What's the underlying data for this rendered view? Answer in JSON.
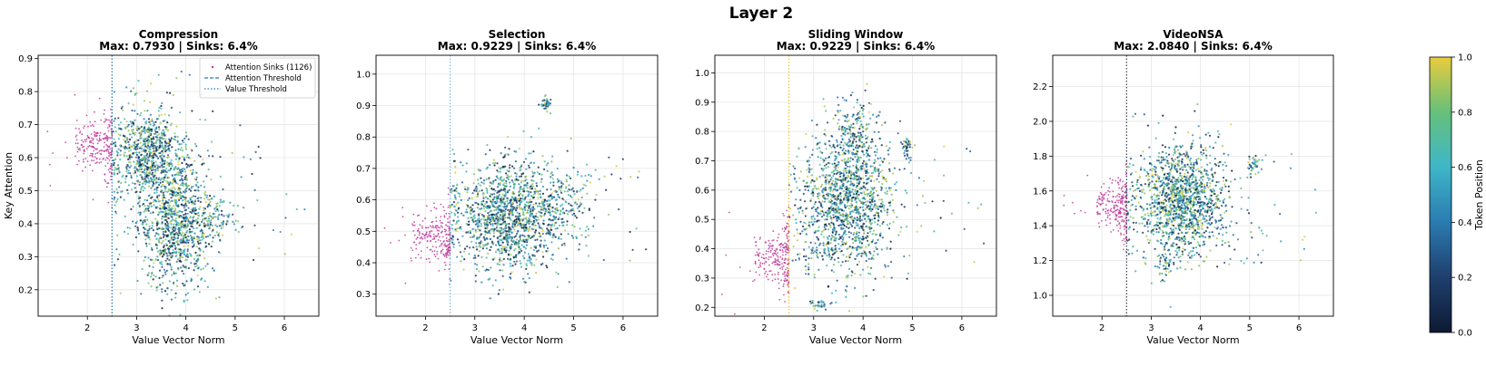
{
  "figure": {
    "suptitle": "Layer 2",
    "colorbar": {
      "label": "Token Position",
      "ticks": [
        "0.0",
        "0.2",
        "0.4",
        "0.6",
        "0.8",
        "1.0"
      ],
      "colormap": "viridis-like",
      "range": [
        0,
        1
      ]
    },
    "colors": {
      "sink_marker": "#c0399a",
      "grid": "#e6e6e6"
    }
  },
  "chart_data": [
    {
      "type": "scatter",
      "title": "Compression",
      "subtitle": "Max: 0.7930 | Sinks: 6.4%",
      "xlabel": "Value Vector Norm",
      "ylabel": "Key Attention",
      "xlim": [
        1.0,
        6.7
      ],
      "ylim": [
        0.12,
        0.91
      ],
      "xticks": [
        2,
        3,
        4,
        5,
        6
      ],
      "yticks": [
        0.2,
        0.3,
        0.4,
        0.5,
        0.6,
        0.7,
        0.8,
        0.9
      ],
      "grid": true,
      "value_threshold": 2.5,
      "threshold_color": "#1f77b4",
      "legend": {
        "placement": "top-right",
        "entries": [
          "Attention Sinks (1126)",
          "Attention Threshold",
          "Value Threshold"
        ]
      },
      "clusters": [
        {
          "kind": "sinks",
          "x_range": [
            1.75,
            2.5
          ],
          "y_center": 0.64,
          "y_spread": 0.05,
          "count": 230
        },
        {
          "kind": "tokens",
          "x_center": 3.2,
          "y_center": 0.62,
          "sx": 0.35,
          "sy": 0.06,
          "count": 600
        },
        {
          "kind": "tokens",
          "x_center": 3.8,
          "y_center": 0.4,
          "sx": 0.35,
          "sy": 0.1,
          "count": 900
        },
        {
          "kind": "tokens",
          "x_center": 4.6,
          "y_center": 0.42,
          "sx": 0.25,
          "sy": 0.04,
          "count": 120
        },
        {
          "kind": "tokens",
          "x_center": 3.5,
          "y_center": 0.52,
          "sx": 0.55,
          "sy": 0.14,
          "count": 300
        }
      ]
    },
    {
      "type": "scatter",
      "title": "Selection",
      "subtitle": "Max: 0.9229 | Sinks: 6.4%",
      "xlabel": "Value Vector Norm",
      "ylabel": "",
      "xlim": [
        1.0,
        6.7
      ],
      "ylim": [
        0.23,
        1.06
      ],
      "xticks": [
        2,
        3,
        4,
        5,
        6
      ],
      "yticks": [
        0.3,
        0.4,
        0.5,
        0.6,
        0.7,
        0.8,
        0.9,
        1.0
      ],
      "grid": true,
      "value_threshold": 2.5,
      "threshold_color": "#7ab8e0",
      "clusters": [
        {
          "kind": "sinks",
          "x_range": [
            1.7,
            2.5
          ],
          "y_center": 0.48,
          "y_spread": 0.05,
          "count": 230
        },
        {
          "kind": "tokens",
          "x_center": 3.7,
          "y_center": 0.55,
          "sx": 0.55,
          "sy": 0.08,
          "count": 1200
        },
        {
          "kind": "tokens",
          "x_center": 4.45,
          "y_center": 0.905,
          "sx": 0.05,
          "sy": 0.01,
          "count": 40
        },
        {
          "kind": "tokens",
          "x_center": 4.8,
          "y_center": 0.62,
          "sx": 0.3,
          "sy": 0.05,
          "count": 120
        },
        {
          "kind": "tokens",
          "x_center": 3.6,
          "y_center": 0.55,
          "sx": 0.7,
          "sy": 0.12,
          "count": 200
        }
      ]
    },
    {
      "type": "scatter",
      "title": "Sliding Window",
      "subtitle": "Max: 0.9229 | Sinks: 6.4%",
      "xlabel": "Value Vector Norm",
      "ylabel": "",
      "xlim": [
        1.0,
        6.7
      ],
      "ylim": [
        0.17,
        1.06
      ],
      "xticks": [
        2,
        3,
        4,
        5,
        6
      ],
      "yticks": [
        0.2,
        0.3,
        0.4,
        0.5,
        0.6,
        0.7,
        0.8,
        0.9,
        1.0
      ],
      "grid": true,
      "value_threshold": 2.5,
      "threshold_color": "#e8c630",
      "clusters": [
        {
          "kind": "sinks",
          "x_range": [
            1.8,
            2.5
          ],
          "y_center": 0.37,
          "y_spread": 0.06,
          "count": 230
        },
        {
          "kind": "tokens",
          "x_center": 3.7,
          "y_center": 0.58,
          "sx": 0.45,
          "sy": 0.12,
          "count": 1200
        },
        {
          "kind": "tokens",
          "x_center": 3.8,
          "y_center": 0.8,
          "sx": 0.2,
          "sy": 0.05,
          "count": 150
        },
        {
          "kind": "tokens",
          "x_center": 4.9,
          "y_center": 0.74,
          "sx": 0.05,
          "sy": 0.02,
          "count": 40
        },
        {
          "kind": "tokens",
          "x_center": 3.1,
          "y_center": 0.21,
          "sx": 0.1,
          "sy": 0.01,
          "count": 30
        },
        {
          "kind": "tokens",
          "x_center": 3.5,
          "y_center": 0.45,
          "sx": 0.6,
          "sy": 0.08,
          "count": 200
        }
      ]
    },
    {
      "type": "scatter",
      "title": "VideoNSA",
      "subtitle": "Max: 2.0840 | Sinks: 6.4%",
      "xlabel": "Value Vector Norm",
      "ylabel": "",
      "xlim": [
        1.0,
        6.7
      ],
      "ylim": [
        0.88,
        2.38
      ],
      "xticks": [
        2,
        3,
        4,
        5,
        6
      ],
      "yticks": [
        1.0,
        1.2,
        1.4,
        1.6,
        1.8,
        2.0,
        2.2
      ],
      "grid": true,
      "value_threshold": 2.5,
      "threshold_color": "#3a3f4a",
      "clusters": [
        {
          "kind": "sinks",
          "x_range": [
            1.9,
            2.5
          ],
          "y_center": 1.52,
          "y_spread": 0.09,
          "count": 230
        },
        {
          "kind": "tokens",
          "x_center": 3.6,
          "y_center": 1.55,
          "sx": 0.45,
          "sy": 0.15,
          "count": 1200
        },
        {
          "kind": "tokens",
          "x_center": 5.1,
          "y_center": 1.76,
          "sx": 0.08,
          "sy": 0.03,
          "count": 40
        },
        {
          "kind": "tokens",
          "x_center": 3.3,
          "y_center": 1.18,
          "sx": 0.08,
          "sy": 0.05,
          "count": 40
        },
        {
          "kind": "tokens",
          "x_center": 3.6,
          "y_center": 1.55,
          "sx": 0.7,
          "sy": 0.22,
          "count": 220
        }
      ]
    }
  ]
}
